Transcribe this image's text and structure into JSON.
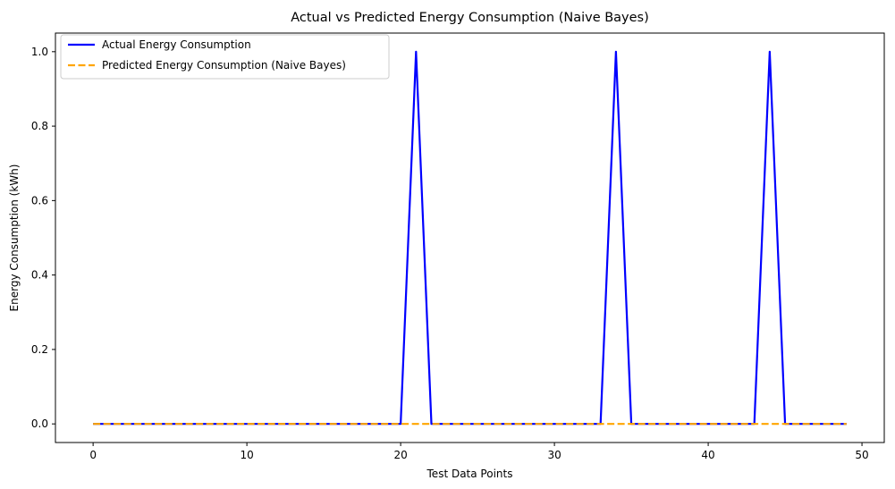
{
  "chart_data": {
    "type": "line",
    "title": "Actual vs Predicted Energy Consumption (Naive Bayes)",
    "xlabel": "Test Data Points",
    "ylabel": "Energy Consumption (kWh)",
    "xlim": [
      -2.45,
      51.45
    ],
    "ylim": [
      -0.05,
      1.05
    ],
    "xticks": [
      0,
      10,
      20,
      30,
      40,
      50
    ],
    "yticks": [
      0.0,
      0.2,
      0.4,
      0.6,
      0.8,
      1.0
    ],
    "xtick_labels": [
      "0",
      "10",
      "20",
      "30",
      "40",
      "50"
    ],
    "ytick_labels": [
      "0.0",
      "0.2",
      "0.4",
      "0.6",
      "0.8",
      "1.0"
    ],
    "grid": false,
    "legend_position": "top-left",
    "x": [
      0,
      1,
      2,
      3,
      4,
      5,
      6,
      7,
      8,
      9,
      10,
      11,
      12,
      13,
      14,
      15,
      16,
      17,
      18,
      19,
      20,
      21,
      22,
      23,
      24,
      25,
      26,
      27,
      28,
      29,
      30,
      31,
      32,
      33,
      34,
      35,
      36,
      37,
      38,
      39,
      40,
      41,
      42,
      43,
      44,
      45,
      46,
      47,
      48,
      49
    ],
    "series": [
      {
        "name": "Actual Energy Consumption",
        "color": "#0000ff",
        "style": "solid",
        "values": [
          0,
          0,
          0,
          0,
          0,
          0,
          0,
          0,
          0,
          0,
          0,
          0,
          0,
          0,
          0,
          0,
          0,
          0,
          0,
          0,
          0,
          1,
          0,
          0,
          0,
          0,
          0,
          0,
          0,
          0,
          0,
          0,
          0,
          0,
          1,
          0,
          0,
          0,
          0,
          0,
          0,
          0,
          0,
          0,
          1,
          0,
          0,
          0,
          0,
          0
        ]
      },
      {
        "name": "Predicted Energy Consumption (Naive Bayes)",
        "color": "#ffa500",
        "style": "dashed",
        "values": [
          0,
          0,
          0,
          0,
          0,
          0,
          0,
          0,
          0,
          0,
          0,
          0,
          0,
          0,
          0,
          0,
          0,
          0,
          0,
          0,
          0,
          0,
          0,
          0,
          0,
          0,
          0,
          0,
          0,
          0,
          0,
          0,
          0,
          0,
          0,
          0,
          0,
          0,
          0,
          0,
          0,
          0,
          0,
          0,
          0,
          0,
          0,
          0,
          0,
          0
        ]
      }
    ]
  }
}
